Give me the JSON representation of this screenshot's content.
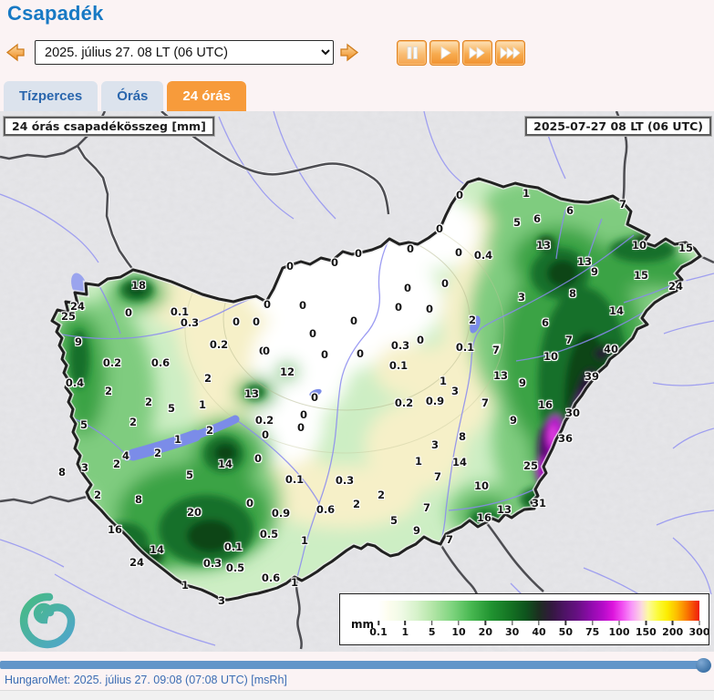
{
  "header": {
    "title": "Csapadék"
  },
  "controls": {
    "datetime_value": "2025. július 27. 08 LT (06  UTC)",
    "media_buttons": [
      "pause",
      "play",
      "fast-forward",
      "fastest-forward"
    ]
  },
  "tabs": [
    {
      "label": "Tízperces",
      "active": false
    },
    {
      "label": "Órás",
      "active": false
    },
    {
      "label": "24 órás",
      "active": true
    }
  ],
  "map": {
    "title_box": "24 órás csapadékösszeg [mm]",
    "timestamp_box": "2025-07-27 08 LT (06 UTC)",
    "logo": "hungaromet-spiral-logo",
    "legend": {
      "unit": "mm",
      "ticks": [
        "0.1",
        "1",
        "5",
        "10",
        "20",
        "30",
        "40",
        "50",
        "75",
        "100",
        "150",
        "200",
        "300"
      ],
      "gradient": [
        [
          0,
          "#ffffff"
        ],
        [
          3,
          "#fdfdef"
        ],
        [
          7,
          "#f0fae6"
        ],
        [
          12,
          "#d6f2ca"
        ],
        [
          17,
          "#b2e5a6"
        ],
        [
          23,
          "#7ed47e"
        ],
        [
          29,
          "#47b750"
        ],
        [
          35,
          "#219431"
        ],
        [
          41,
          "#147323"
        ],
        [
          46,
          "#0e531d"
        ],
        [
          50,
          "#1c2e20"
        ],
        [
          54,
          "#33183f"
        ],
        [
          58,
          "#4e1366"
        ],
        [
          62,
          "#671083"
        ],
        [
          66,
          "#8e0bab"
        ],
        [
          70,
          "#b50bc9"
        ],
        [
          73,
          "#dc14dc"
        ],
        [
          76,
          "#f14ff1"
        ],
        [
          79,
          "#f99af9"
        ],
        [
          82,
          "#fbd9e0"
        ],
        [
          84,
          "#fdfa9e"
        ],
        [
          87,
          "#fbfb3a"
        ],
        [
          90,
          "#fcec00"
        ],
        [
          93,
          "#fdbc00"
        ],
        [
          96,
          "#fa7a00"
        ],
        [
          100,
          "#ef1c0c"
        ]
      ]
    },
    "stations": [
      [
        152,
        313,
        "18"
      ],
      [
        85,
        336,
        "24"
      ],
      [
        75,
        347,
        "25"
      ],
      [
        141,
        343,
        "0"
      ],
      [
        197,
        342,
        "0.1"
      ],
      [
        208,
        354,
        "0.3"
      ],
      [
        259,
        353,
        "0"
      ],
      [
        281,
        353,
        "0"
      ],
      [
        292,
        335,
        "0"
      ],
      [
        86,
        375,
        "9"
      ],
      [
        123,
        398,
        "0.2"
      ],
      [
        240,
        378,
        "0.2"
      ],
      [
        288,
        385,
        "0"
      ],
      [
        176,
        398,
        "0.6"
      ],
      [
        228,
        415,
        "2"
      ],
      [
        315,
        408,
        "12"
      ],
      [
        276,
        432,
        "13"
      ],
      [
        82,
        420,
        "0.4"
      ],
      [
        119,
        429,
        "2"
      ],
      [
        163,
        441,
        "2"
      ],
      [
        188,
        448,
        "5"
      ],
      [
        222,
        444,
        "1"
      ],
      [
        290,
        461,
        "0.2"
      ],
      [
        92,
        466,
        "5"
      ],
      [
        146,
        463,
        "2"
      ],
      [
        291,
        477,
        "0"
      ],
      [
        195,
        482,
        "1"
      ],
      [
        230,
        472,
        "2"
      ],
      [
        173,
        497,
        "2"
      ],
      [
        138,
        500,
        "4"
      ],
      [
        68,
        518,
        "8"
      ],
      [
        93,
        513,
        "3"
      ],
      [
        128,
        509,
        "2"
      ],
      [
        107,
        543,
        "2"
      ],
      [
        247,
        509,
        "14"
      ],
      [
        208,
        521,
        "5"
      ],
      [
        152,
        548,
        "8"
      ],
      [
        213,
        562,
        "20"
      ],
      [
        126,
        581,
        "16"
      ],
      [
        172,
        603,
        "14"
      ],
      [
        150,
        617,
        "24"
      ],
      [
        274,
        552,
        "0"
      ],
      [
        308,
        563,
        "0.9"
      ],
      [
        295,
        586,
        "0.5"
      ],
      [
        256,
        600,
        "0.1"
      ],
      [
        233,
        618,
        "0.3"
      ],
      [
        258,
        623,
        "0.5"
      ],
      [
        297,
        634,
        "0.6"
      ],
      [
        323,
        639,
        "1"
      ],
      [
        243,
        659,
        "3"
      ],
      [
        203,
        642,
        "1"
      ],
      [
        318,
        292,
        "0"
      ],
      [
        332,
        335,
        "0"
      ],
      [
        343,
        366,
        "0"
      ],
      [
        367,
        288,
        "0"
      ],
      [
        388,
        352,
        "0"
      ],
      [
        393,
        278,
        "0"
      ],
      [
        450,
        273,
        "0"
      ],
      [
        503,
        277,
        "0"
      ],
      [
        530,
        280,
        "0.4"
      ],
      [
        482,
        251,
        "0"
      ],
      [
        504,
        214,
        "0"
      ],
      [
        447,
        316,
        "0"
      ],
      [
        488,
        311,
        "0"
      ],
      [
        437,
        337,
        "0"
      ],
      [
        471,
        339,
        "0"
      ],
      [
        293,
        334,
        "0"
      ],
      [
        292,
        385,
        "0"
      ],
      [
        356,
        389,
        "0"
      ],
      [
        395,
        388,
        "0"
      ],
      [
        345,
        436,
        "0"
      ],
      [
        333,
        455,
        "0"
      ],
      [
        330,
        469,
        "0"
      ],
      [
        283,
        503,
        "0"
      ],
      [
        323,
        526,
        "0.1"
      ],
      [
        378,
        527,
        "0.3"
      ],
      [
        439,
        379,
        "0.3"
      ],
      [
        461,
        373,
        "0"
      ],
      [
        437,
        401,
        "0.1"
      ],
      [
        510,
        381,
        "0.1"
      ],
      [
        518,
        351,
        "2"
      ],
      [
        443,
        442,
        "0.2"
      ],
      [
        477,
        440,
        "0.9"
      ],
      [
        486,
        418,
        "1"
      ],
      [
        499,
        429,
        "3"
      ],
      [
        531,
        443,
        "7"
      ],
      [
        459,
        506,
        "1"
      ],
      [
        477,
        488,
        "3"
      ],
      [
        507,
        479,
        "8"
      ],
      [
        504,
        507,
        "14"
      ],
      [
        480,
        523,
        "7"
      ],
      [
        528,
        533,
        "10"
      ],
      [
        357,
        559,
        "0.6"
      ],
      [
        391,
        553,
        "2"
      ],
      [
        418,
        543,
        "2"
      ],
      [
        432,
        571,
        "5"
      ],
      [
        334,
        593,
        "1"
      ],
      [
        468,
        557,
        "7"
      ],
      [
        531,
        568,
        "16"
      ],
      [
        457,
        582,
        "9"
      ],
      [
        493,
        592,
        "7"
      ],
      [
        553,
        559,
        "13"
      ],
      [
        591,
        552,
        "31"
      ],
      [
        545,
        383,
        "7"
      ],
      [
        577,
        212,
        "1"
      ],
      [
        625,
        231,
        "6"
      ],
      [
        683,
        224,
        "7"
      ],
      [
        567,
        244,
        "5"
      ],
      [
        589,
        240,
        "6"
      ],
      [
        596,
        269,
        "13"
      ],
      [
        701,
        269,
        "10"
      ],
      [
        752,
        272,
        "15"
      ],
      [
        641,
        287,
        "13"
      ],
      [
        652,
        298,
        "9"
      ],
      [
        703,
        302,
        "15"
      ],
      [
        741,
        314,
        "24"
      ],
      [
        572,
        326,
        "3"
      ],
      [
        628,
        322,
        "8"
      ],
      [
        676,
        341,
        "14"
      ],
      [
        598,
        354,
        "6"
      ],
      [
        624,
        373,
        "7"
      ],
      [
        544,
        384,
        "7"
      ],
      [
        604,
        391,
        "10"
      ],
      [
        670,
        383,
        "40"
      ],
      [
        549,
        412,
        "13"
      ],
      [
        573,
        420,
        "9"
      ],
      [
        649,
        413,
        "39"
      ],
      [
        532,
        442,
        "7"
      ],
      [
        598,
        444,
        "16"
      ],
      [
        628,
        453,
        "30"
      ],
      [
        563,
        461,
        "9"
      ],
      [
        620,
        481,
        "36"
      ],
      [
        582,
        511,
        "25"
      ]
    ]
  },
  "footer": {
    "credit": "HungaroMet: 2025. július 27. 09:08 (07:08  UTC)  [msRh]"
  },
  "colors": {
    "title_blue": "#1779c4",
    "tab_orange": "#f79b3b",
    "tab_text_blue": "#2a66ad",
    "button_orange": "#f1912e",
    "slider_blue": "#6295c9",
    "footer_blue": "#3b6db3",
    "map_outside_gray": "#e7e7ea",
    "river_blue": "#8e8ef2"
  }
}
